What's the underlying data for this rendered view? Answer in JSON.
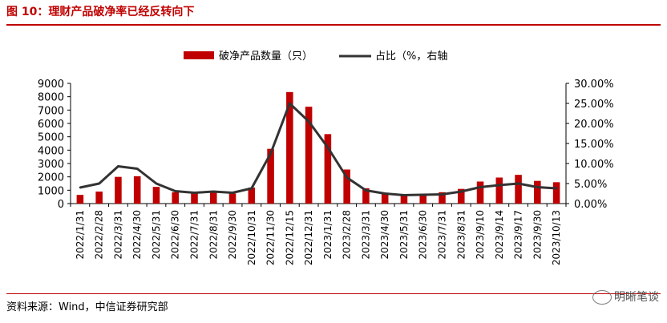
{
  "header": {
    "title": "图 10：理财产品破净率已经反转向下"
  },
  "footer": {
    "source": "资料来源：Wind，中信证券研究部",
    "watermark": "明晰笔谈"
  },
  "colors": {
    "bar": "#c00000",
    "line": "#333333",
    "accent": "#c00000"
  },
  "chart_data": {
    "type": "bar",
    "title": "",
    "categories": [
      "2022/1/31",
      "2022/2/28",
      "2022/3/31",
      "2022/4/30",
      "2022/5/31",
      "2022/6/30",
      "2022/7/31",
      "2022/8/31",
      "2022/9/30",
      "2022/10/31",
      "2022/11/30",
      "2022/12/15",
      "2022/12/31",
      "2023/1/31",
      "2023/2/28",
      "2023/3/31",
      "2023/4/30",
      "2023/5/31",
      "2023/6/30",
      "2023/7/31",
      "2023/8/31",
      "2023/9/10",
      "2023/9/14",
      "2023/9/17",
      "2023/9/30",
      "2023/10/13"
    ],
    "series": [
      {
        "name": "破净产品数量（只）",
        "type": "bar",
        "axis": "left",
        "values": [
          650,
          900,
          2000,
          2050,
          1250,
          850,
          850,
          850,
          750,
          1200,
          4100,
          8350,
          7250,
          5200,
          2550,
          1150,
          750,
          650,
          650,
          850,
          1100,
          1650,
          1950,
          2150,
          1700,
          1600
        ]
      },
      {
        "name": "占比（%，右轴",
        "type": "line",
        "axis": "right",
        "values": [
          4.0,
          5.0,
          9.3,
          8.7,
          5.0,
          3.1,
          2.7,
          3.0,
          2.7,
          3.8,
          12.5,
          25.0,
          20.5,
          14.0,
          6.5,
          3.3,
          2.5,
          2.1,
          2.2,
          2.3,
          3.0,
          4.1,
          4.6,
          5.0,
          4.1,
          3.8
        ]
      }
    ],
    "left_axis": {
      "ylim": [
        0,
        9000
      ],
      "ticks": [
        "0",
        "1000",
        "2000",
        "3000",
        "4000",
        "5000",
        "6000",
        "7000",
        "8000",
        "9000"
      ]
    },
    "right_axis": {
      "ylim": [
        0,
        30
      ],
      "ticks": [
        "0.00%",
        "5.00%",
        "10.00%",
        "15.00%",
        "20.00%",
        "25.00%",
        "30.00%"
      ]
    },
    "legend": {
      "position": "top-center",
      "items": [
        "破净产品数量（只）",
        "占比（%，右轴"
      ]
    },
    "grid": false
  }
}
